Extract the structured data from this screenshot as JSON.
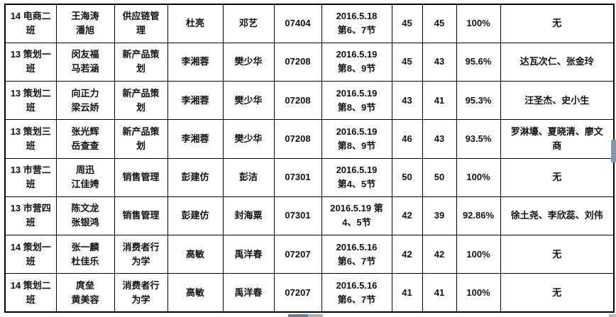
{
  "table": {
    "column_keys": [
      "class_name",
      "students",
      "course",
      "instructor",
      "inspector",
      "course_code",
      "datetime",
      "enrolled",
      "present",
      "attendance_rate",
      "absent_students"
    ],
    "rows": [
      {
        "class_name": "14 电商二\n班",
        "students": "王海涛\n潘旭",
        "course": "供应链管\n理",
        "instructor": "杜亮",
        "inspector": "邓艺",
        "course_code": "07404",
        "datetime": "2016.5.18\n第6、7节",
        "enrolled": "45",
        "present": "45",
        "attendance_rate": "100%",
        "absent_students": "无"
      },
      {
        "class_name": "13 策划一\n班",
        "students": "闵友福\n马若涵",
        "course": "新产品策\n划",
        "instructor": "李湘蓉",
        "inspector": "樊少华",
        "course_code": "07208",
        "datetime": "2016.5.19\n第8、9节",
        "enrolled": "45",
        "present": "43",
        "attendance_rate": "95.6%",
        "absent_students": "达瓦次仁、张金玲"
      },
      {
        "class_name": "13 策划二\n班",
        "students": "向正力\n梁云娇",
        "course": "新产品策\n划",
        "instructor": "李湘蓉",
        "inspector": "樊少华",
        "course_code": "07208",
        "datetime": "2016.5.19\n第8、9节",
        "enrolled": "43",
        "present": "41",
        "attendance_rate": "95.3%",
        "absent_students": "汪圣杰、史小生"
      },
      {
        "class_name": "13 策划三\n班",
        "students": "张光辉\n岳查查",
        "course": "新产品策\n划",
        "instructor": "李湘蓉",
        "inspector": "樊少华",
        "course_code": "07208",
        "datetime": "2016.5.19\n第8、9节",
        "enrolled": "46",
        "present": "43",
        "attendance_rate": "93.5%",
        "absent_students": "罗淋壕、夏晓清、廖文\n商"
      },
      {
        "class_name": "13 市营二\n班",
        "students": "周迅\n江佳娉",
        "course": "销售管理",
        "instructor": "彭建仿",
        "inspector": "彭洁",
        "course_code": "07301",
        "datetime": "2016.5.19\n第4、5节",
        "enrolled": "50",
        "present": "50",
        "attendance_rate": "100%",
        "absent_students": "无"
      },
      {
        "class_name": "13 市营四\n班",
        "students": "陈文龙\n张银鸿",
        "course": "销售管理",
        "instructor": "彭建仿",
        "inspector": "封海粟",
        "course_code": "07301",
        "datetime": "2016.5.19 第\n4、5节",
        "enrolled": "42",
        "present": "39",
        "attendance_rate": "92.86%",
        "absent_students": "徐土尧、李欣蕊、刘伟"
      },
      {
        "class_name": "14 策划一\n班",
        "students": "张一麟\n杜佳乐",
        "course": "消费者行\n为学",
        "instructor": "高敏",
        "inspector": "禹洋春",
        "course_code": "07207",
        "datetime": "2016.5.16\n第6、7节",
        "enrolled": "42",
        "present": "42",
        "attendance_rate": "100%",
        "absent_students": "无"
      },
      {
        "class_name": "14 策划二\n班",
        "students": "庹垒\n黄美容",
        "course": "消费者行\n为学",
        "instructor": "高敏",
        "inspector": "禹洋春",
        "course_code": "07207",
        "datetime": "2016.5.16\n第6、7节",
        "enrolled": "41",
        "present": "41",
        "attendance_rate": "100%",
        "absent_students": "无"
      }
    ]
  },
  "artifacts": {
    "hscroll_dark_color": "#6e7f93",
    "hscroll_light_color": "#b0b0b0",
    "vscroll_color": "#8496ad"
  }
}
